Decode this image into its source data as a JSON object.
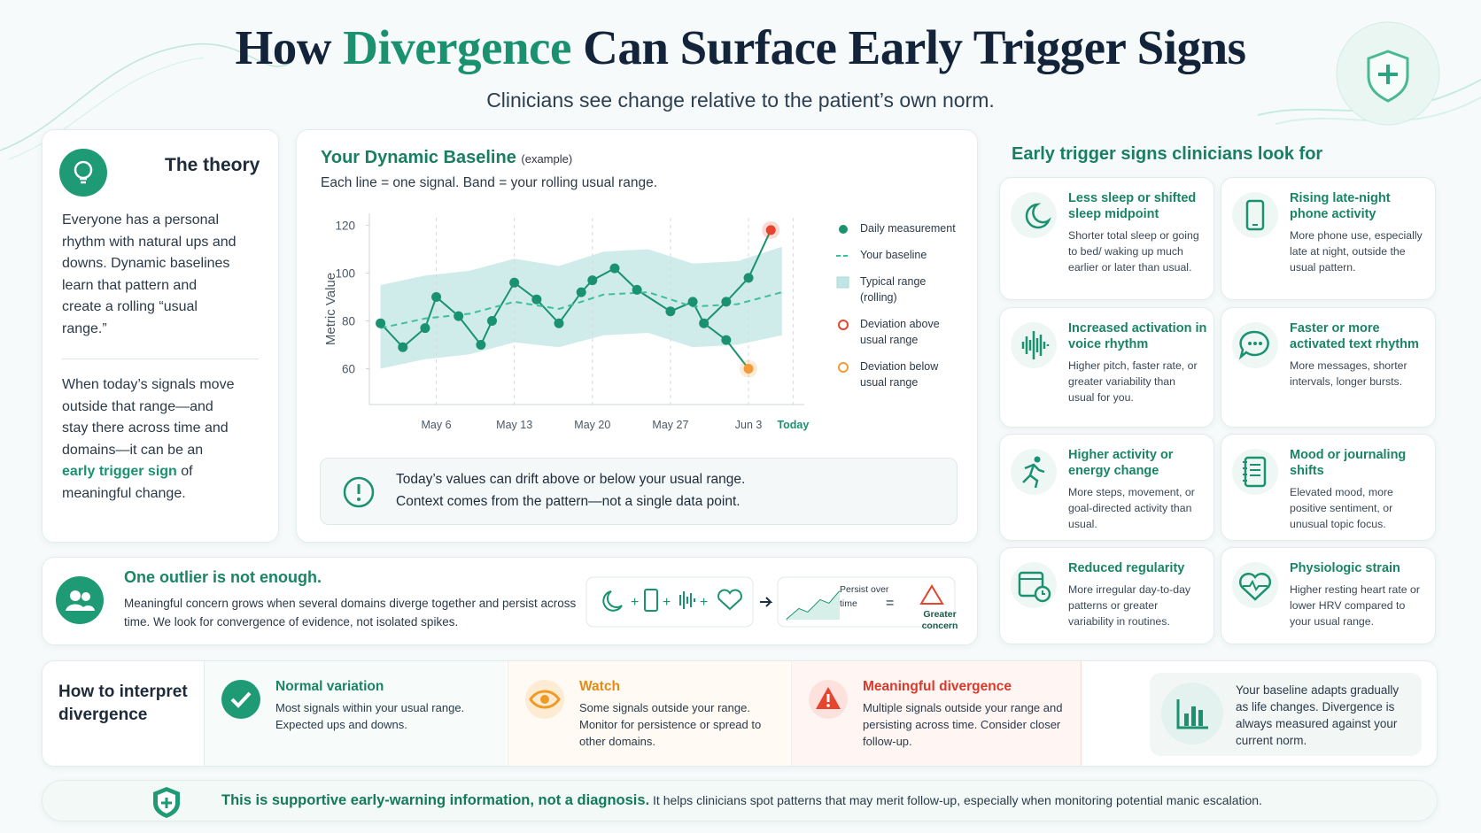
{
  "header": {
    "title_before": "How",
    "title_highlight": "Divergence",
    "title_after": "Can Surface Early Trigger Signs",
    "subtitle": "Clinicians see change relative to the patient’s own norm."
  },
  "theory": {
    "title": "The theory",
    "paragraph_1": "Everyone has a personal rhythm with natural ups and downs. Dynamic baselines learn that pattern and create a rolling “usual range.”",
    "paragraph_2_before": "When today’s signals move outside that range—and stay there across time and domains—it can be an",
    "paragraph_2_highlight": "early trigger sign",
    "paragraph_2_after": "of meaningful change."
  },
  "chart_data": {
    "type": "line",
    "title": "Your Dynamic Baseline",
    "title_note": "(example)",
    "subtitle": "Each line = one signal. Band = your rolling usual range.",
    "y_label": "Metric Value",
    "xlim": [
      -6,
      33
    ],
    "ylim": [
      45,
      125
    ],
    "xticks": [
      {
        "value": 0,
        "label": "May 6"
      },
      {
        "value": 7,
        "label": "May 13"
      },
      {
        "value": 14,
        "label": "May 20"
      },
      {
        "value": 21,
        "label": "May 27"
      },
      {
        "value": 28,
        "label": "Jun 3"
      },
      {
        "value": 32,
        "label": "Today"
      }
    ],
    "yticks": [
      60,
      80,
      100,
      120
    ],
    "grid": true,
    "series": [
      {
        "name": "Daily measurement",
        "style": "dots",
        "color": "#1a9270",
        "x": [
          -5,
          -3,
          -1,
          0,
          2,
          4,
          5,
          7,
          9,
          11,
          13,
          14,
          16,
          18,
          21,
          23,
          24,
          26,
          28
        ],
        "values": [
          79,
          69,
          77,
          90,
          82,
          70,
          80,
          96,
          89,
          79,
          92,
          97,
          102,
          93,
          84,
          88,
          79,
          88,
          98
        ]
      },
      {
        "name": "Your baseline",
        "style": "dashed",
        "color": "#3fbf95",
        "x": [
          -5,
          -1,
          3,
          7,
          11,
          15,
          19,
          23,
          27,
          31
        ],
        "values": [
          77,
          81,
          83,
          88,
          85,
          91,
          92,
          86,
          87,
          92
        ]
      },
      {
        "name": "Typical range (rolling)",
        "style": "band",
        "color": "#bfe6e4",
        "x": [
          -5,
          -1,
          3,
          7,
          11,
          15,
          19,
          23,
          27,
          31
        ],
        "low": [
          60,
          64,
          66,
          71,
          69,
          74,
          75,
          69,
          70,
          74
        ],
        "high": [
          95,
          99,
          101,
          106,
          103,
          109,
          110,
          104,
          105,
          111
        ]
      },
      {
        "name": "Deviation above usual range",
        "style": "point",
        "color": "#e5442f",
        "x": [
          30
        ],
        "values": [
          118
        ]
      },
      {
        "name": "Deviation below usual range",
        "style": "point",
        "color": "#f29b38",
        "x": [
          26,
          28
        ],
        "values": [
          72,
          60
        ]
      }
    ],
    "note_lines": [
      "Today’s values can drift above or below your usual range.",
      "Context comes from the pattern—not a single data point."
    ]
  },
  "signs": {
    "title": "Early trigger signs clinicians look for",
    "items": [
      {
        "title": "Less sleep or shifted sleep midpoint",
        "text": "Shorter total sleep or going to bed/ waking up much earlier or later than usual."
      },
      {
        "title": "Rising late-night phone activity",
        "text": "More phone use, especially late at night, outside the usual pattern."
      },
      {
        "title": "Increased activation in voice rhythm",
        "text": "Higher pitch, faster rate, or greater variability than usual for you."
      },
      {
        "title": "Faster or more activated text rhythm",
        "text": "More messages, shorter intervals, longer bursts."
      },
      {
        "title": "Higher activity or energy change",
        "text": "More steps, movement, or goal-directed activity than usual."
      },
      {
        "title": "Mood or journaling shifts",
        "text": "Elevated mood, more positive sentiment, or unusual topic focus."
      },
      {
        "title": "Reduced regularity",
        "text": "More irregular day-to-day patterns or greater variability in routines."
      },
      {
        "title": "Physiologic strain",
        "text": "Higher resting heart rate or lower HRV compared to your usual range."
      }
    ]
  },
  "outlier": {
    "title": "One outlier is not enough.",
    "text": "Meaningful concern grows when several domains diverge together and persist across time. We look for convergence of evidence, not isolated spikes.",
    "persist_label": "Persist over time",
    "concern_label": "Greater concern"
  },
  "interpret": {
    "title": "How to interpret divergence",
    "levels": [
      {
        "title": "Normal variation",
        "text": "Most signals within your usual range. Expected ups and downs."
      },
      {
        "title": "Watch",
        "text": "Some signals outside your range. Monitor for persistence or spread to other domains."
      },
      {
        "title": "Meaningful divergence",
        "text": "Multiple signals outside your range and persisting across time. Consider closer follow-up."
      }
    ],
    "note": "Your baseline adapts gradually as life changes. Divergence is always measured against your current norm."
  },
  "footer": {
    "bold": "This is supportive early-warning information, not a diagnosis.",
    "text": "It helps clinicians spot patterns that may merit follow-up, especially when monitoring potential manic escalation."
  }
}
